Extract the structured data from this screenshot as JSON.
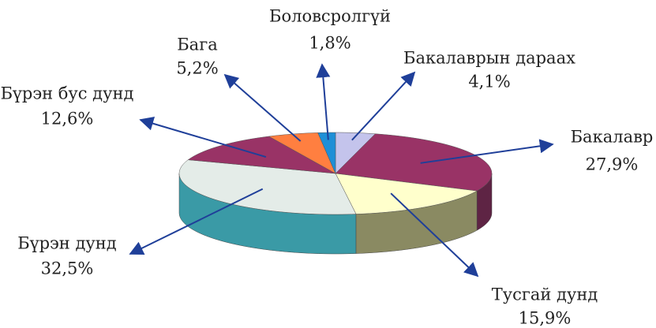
{
  "chart_data": {
    "type": "pie3d",
    "categories": [
      "Бакалаврын дараах",
      "Бакалавр",
      "Тусгай дунд",
      "Бүрэн дунд",
      "Бүрэн бус дунд",
      "Бага",
      "Боловсролгүй"
    ],
    "values": [
      4.1,
      27.9,
      15.9,
      32.5,
      12.6,
      5.2,
      1.8
    ],
    "value_labels": [
      "4,1%",
      "27,9%",
      "15,9%",
      "32,5%",
      "12,6%",
      "5,2%",
      "1,8%"
    ],
    "colors": [
      "#c4c4ec",
      "#993366",
      "#ffffcc",
      "#e4ece8",
      "#993366",
      "#ff7f40",
      "#1e8fd6"
    ],
    "side_colors": [
      "#8c8cb0",
      "#5e2444",
      "#8a8a62",
      "#3a9aa6",
      "#5e2444",
      "#b05020",
      "#10609a"
    ]
  }
}
